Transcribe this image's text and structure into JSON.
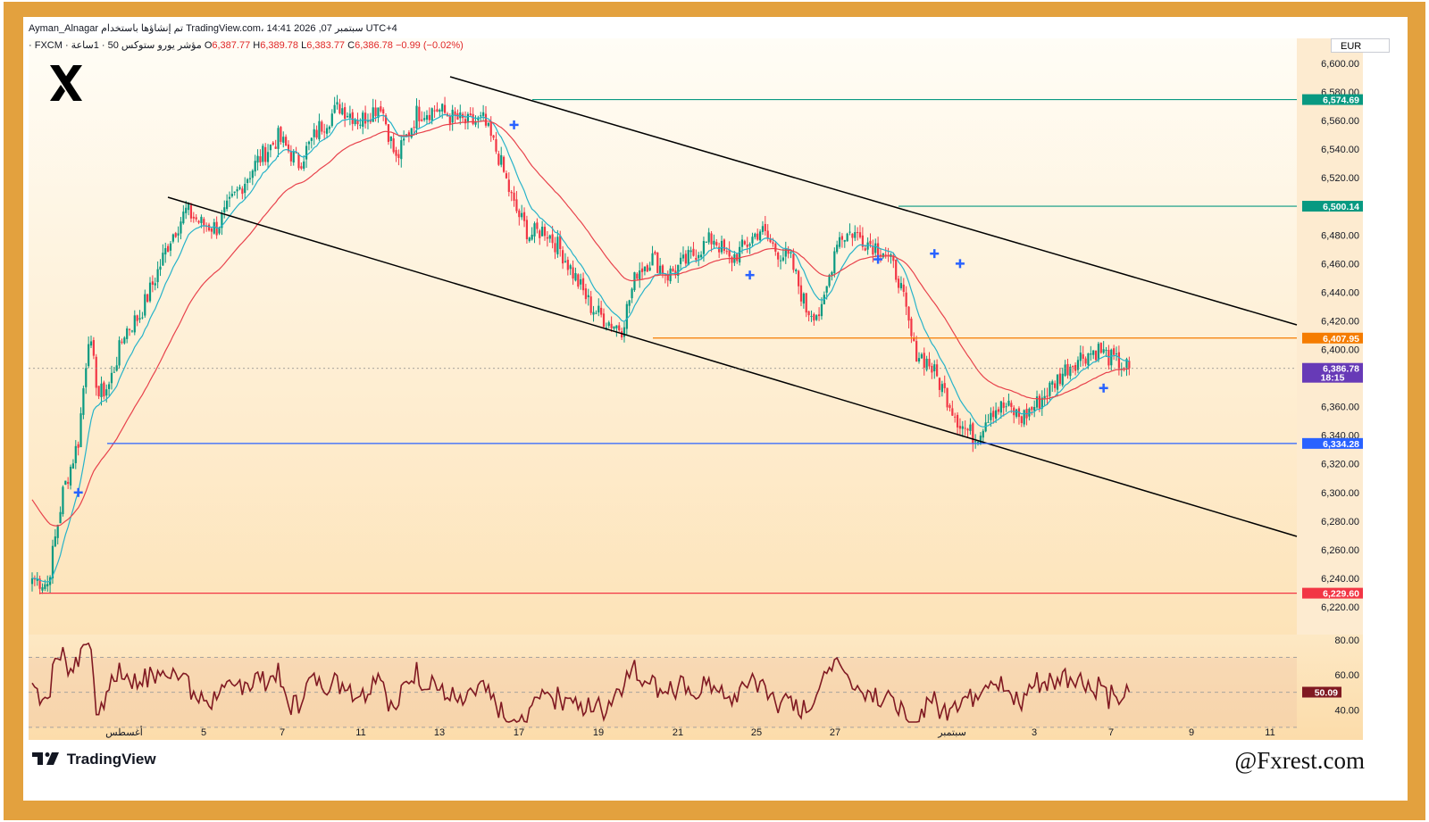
{
  "header": {
    "line1": "Ayman_Alnagar تم إنشاؤها باستخدام TradingView.com، 14:41 2026 ,07 سبتمبر UTC+4",
    "symbol": "· FXCM · مؤشر يورو ستوكس 50 · 1ساعة",
    "open_label": "O",
    "open": "6,387.77",
    "high_label": "H",
    "high": "6,389.78",
    "low_label": "L",
    "low": "6,383.77",
    "close_label": "C",
    "close": "6,386.78",
    "change": "−0.99 (−0.02%)"
  },
  "currency_label": "EUR",
  "brand": {
    "tradingview": "TradingView",
    "watermark": "@Fxrest.com"
  },
  "colors": {
    "up": "#089981",
    "down": "#f23645",
    "ema_fast": "#26b3c9",
    "ema_slow": "#e8424c",
    "rsi": "#801922",
    "channel": "#000000",
    "frame": "#e3a13e",
    "marker": "#2962ff"
  },
  "chart_data": {
    "type": "candlestick",
    "instrument": "مؤشر يورو ستوكس 50",
    "timeframe": "1ساعة",
    "currency": "EUR",
    "y_axis": {
      "ticks": [
        "6,600.00",
        "6,580.00",
        "6,560.00",
        "6,540.00",
        "6,520.00",
        "6,500.00",
        "6,480.00",
        "6,460.00",
        "6,440.00",
        "6,420.00",
        "6,400.00",
        "6,360.00",
        "6,340.00",
        "6,320.00",
        "6,300.00",
        "6,280.00",
        "6,260.00",
        "6,240.00",
        "6,220.00"
      ],
      "range": [
        6215,
        6605
      ]
    },
    "x_axis": {
      "ticks": [
        "أغسطس",
        "5",
        "7",
        "11",
        "13",
        "17",
        "19",
        "21",
        "25",
        "27",
        "سبتمبر",
        "3",
        "7",
        "9",
        "11"
      ]
    },
    "close_path": [
      [
        0,
        6240
      ],
      [
        6,
        6236
      ],
      [
        12,
        6300
      ],
      [
        18,
        6336
      ],
      [
        22,
        6410
      ],
      [
        26,
        6368
      ],
      [
        30,
        6375
      ],
      [
        36,
        6412
      ],
      [
        42,
        6424
      ],
      [
        48,
        6450
      ],
      [
        54,
        6478
      ],
      [
        60,
        6497
      ],
      [
        66,
        6488
      ],
      [
        72,
        6485
      ],
      [
        80,
        6510
      ],
      [
        88,
        6532
      ],
      [
        96,
        6548
      ],
      [
        104,
        6530
      ],
      [
        112,
        6555
      ],
      [
        120,
        6570
      ],
      [
        128,
        6560
      ],
      [
        136,
        6572
      ],
      [
        142,
        6532
      ],
      [
        150,
        6565
      ],
      [
        158,
        6568
      ],
      [
        164,
        6562
      ],
      [
        170,
        6558
      ],
      [
        176,
        6560
      ],
      [
        182,
        6535
      ],
      [
        188,
        6500
      ],
      [
        194,
        6480
      ],
      [
        200,
        6484
      ],
      [
        206,
        6470
      ],
      [
        212,
        6450
      ],
      [
        218,
        6430
      ],
      [
        224,
        6420
      ],
      [
        230,
        6415
      ],
      [
        236,
        6455
      ],
      [
        242,
        6464
      ],
      [
        248,
        6452
      ],
      [
        254,
        6460
      ],
      [
        260,
        6470
      ],
      [
        266,
        6478
      ],
      [
        272,
        6462
      ],
      [
        278,
        6472
      ],
      [
        284,
        6484
      ],
      [
        290,
        6470
      ],
      [
        296,
        6462
      ],
      [
        302,
        6428
      ],
      [
        308,
        6425
      ],
      [
        314,
        6478
      ],
      [
        320,
        6482
      ],
      [
        326,
        6475
      ],
      [
        332,
        6470
      ],
      [
        338,
        6450
      ],
      [
        344,
        6400
      ],
      [
        350,
        6390
      ],
      [
        356,
        6370
      ],
      [
        362,
        6348
      ],
      [
        368,
        6338
      ],
      [
        374,
        6358
      ],
      [
        380,
        6360
      ],
      [
        386,
        6352
      ],
      [
        392,
        6362
      ],
      [
        398,
        6375
      ],
      [
        404,
        6388
      ],
      [
        410,
        6396
      ],
      [
        416,
        6400
      ],
      [
        422,
        6392
      ],
      [
        428,
        6386.78
      ]
    ],
    "levels": [
      {
        "value": 6574.69,
        "label": "6,574.69",
        "color": "#089981"
      },
      {
        "value": 6500.14,
        "label": "6,500.14",
        "color": "#089981"
      },
      {
        "value": 6407.95,
        "label": "6,407.95",
        "color": "#f57c00"
      },
      {
        "value": 6386.78,
        "label": "6,386.78",
        "sublabel": "18:15",
        "color": "#673ab7"
      },
      {
        "value": 6334.28,
        "label": "6,334.28",
        "color": "#2962ff"
      },
      {
        "value": 6229.6,
        "label": "6,229.60",
        "color": "#f23645"
      }
    ],
    "rsi": {
      "ticks": [
        "80.00",
        "60.00",
        "40.00"
      ],
      "range": [
        32,
        84
      ],
      "bands": [
        70,
        50,
        30
      ],
      "last": "50.09"
    }
  }
}
